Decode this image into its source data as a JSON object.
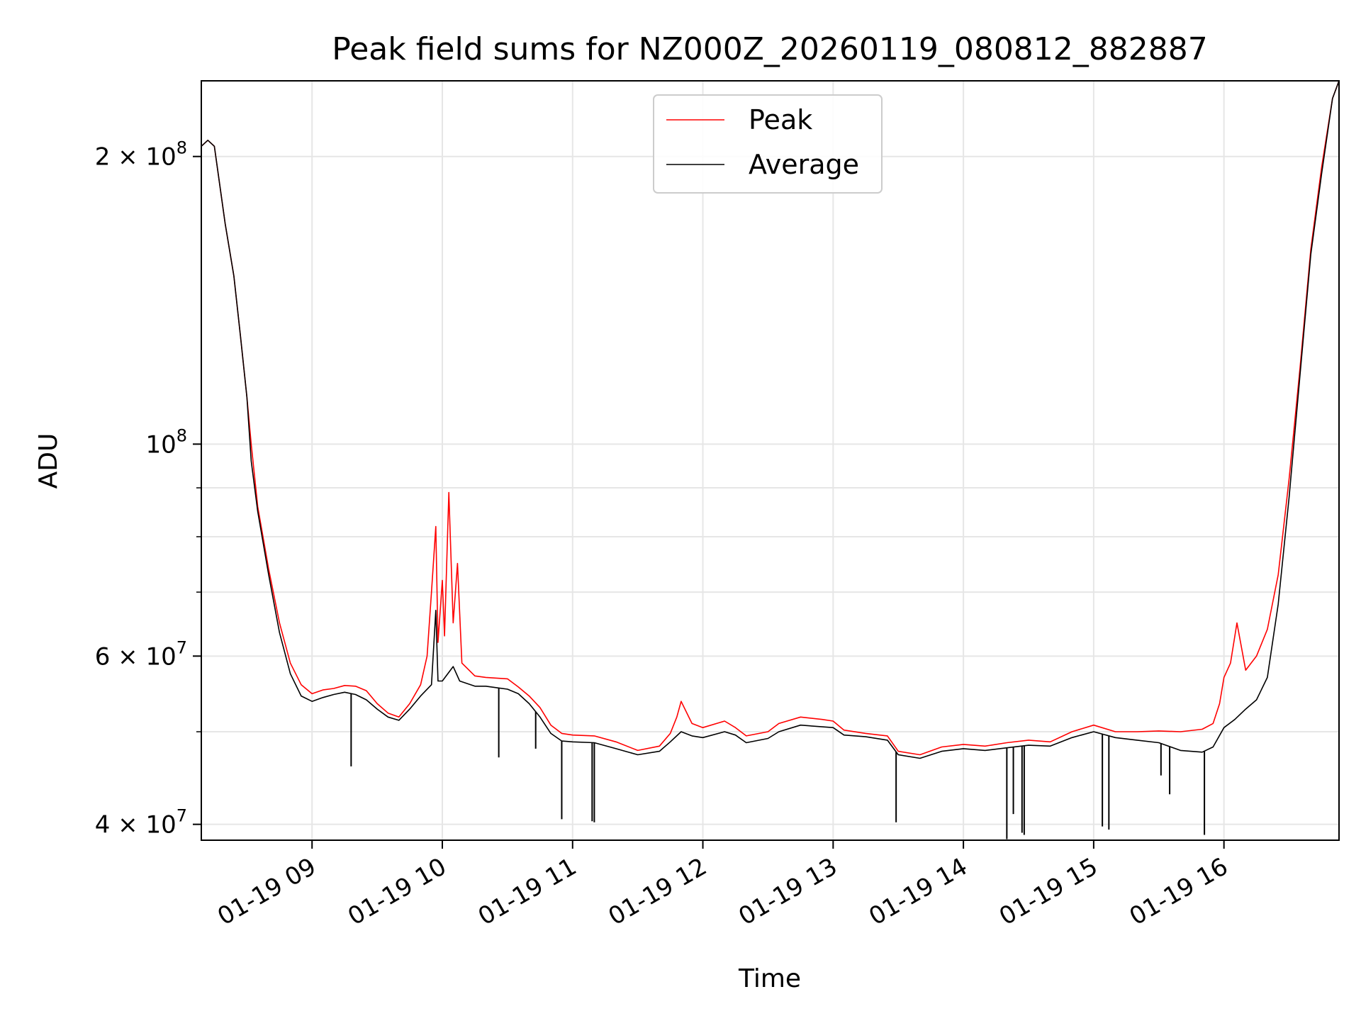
{
  "chart_data": {
    "type": "line",
    "title": "Peak field sums for NZ000Z_20260119_080812_882887",
    "xlabel": "Time",
    "ylabel": "ADU",
    "yscale": "log",
    "xlim": [
      "2026-01-19 08:09",
      "2026-01-19 16:53"
    ],
    "ylim": [
      38500000,
      240000000
    ],
    "grid": true,
    "legend_position": "top-center",
    "x_ticks": [
      {
        "t": "2026-01-19 09:00",
        "label": "01-19 09"
      },
      {
        "t": "2026-01-19 10:00",
        "label": "01-19 10"
      },
      {
        "t": "2026-01-19 11:00",
        "label": "01-19 11"
      },
      {
        "t": "2026-01-19 12:00",
        "label": "01-19 12"
      },
      {
        "t": "2026-01-19 13:00",
        "label": "01-19 13"
      },
      {
        "t": "2026-01-19 14:00",
        "label": "01-19 14"
      },
      {
        "t": "2026-01-19 15:00",
        "label": "01-19 15"
      },
      {
        "t": "2026-01-19 16:00",
        "label": "01-19 16"
      }
    ],
    "y_ticks": [
      {
        "v": 40000000,
        "base": "4 × 10",
        "exp": "7"
      },
      {
        "v": 60000000,
        "base": "6 × 10",
        "exp": "7"
      },
      {
        "v": 100000000,
        "base": "10",
        "exp": "8"
      },
      {
        "v": 200000000,
        "base": "2 × 10",
        "exp": "8"
      }
    ],
    "y_minor_ticks": [
      50000000,
      70000000,
      80000000,
      90000000
    ],
    "series": [
      {
        "name": "Peak",
        "color": "#ff0000",
        "points": [
          [
            "2026-01-19 08:09",
            205000000
          ],
          [
            "2026-01-19 08:12",
            208000000
          ],
          [
            "2026-01-19 08:15",
            205000000
          ],
          [
            "2026-01-19 08:20",
            170000000
          ],
          [
            "2026-01-19 08:24",
            150000000
          ],
          [
            "2026-01-19 08:27",
            130000000
          ],
          [
            "2026-01-19 08:30",
            112000000
          ],
          [
            "2026-01-19 08:32",
            100000000
          ],
          [
            "2026-01-19 08:35",
            86000000
          ],
          [
            "2026-01-19 08:40",
            74000000
          ],
          [
            "2026-01-19 08:45",
            65000000
          ],
          [
            "2026-01-19 08:50",
            59000000
          ],
          [
            "2026-01-19 08:55",
            56000000
          ],
          [
            "2026-01-19 09:00",
            54800000
          ],
          [
            "2026-01-19 09:05",
            55300000
          ],
          [
            "2026-01-19 09:10",
            55500000
          ],
          [
            "2026-01-19 09:15",
            55900000
          ],
          [
            "2026-01-19 09:20",
            55800000
          ],
          [
            "2026-01-19 09:25",
            55200000
          ],
          [
            "2026-01-19 09:30",
            53500000
          ],
          [
            "2026-01-19 09:35",
            52300000
          ],
          [
            "2026-01-19 09:40",
            51800000
          ],
          [
            "2026-01-19 09:45",
            53500000
          ],
          [
            "2026-01-19 09:50",
            56000000
          ],
          [
            "2026-01-19 09:53",
            60000000
          ],
          [
            "2026-01-19 09:55",
            70000000
          ],
          [
            "2026-01-19 09:57",
            82000000
          ],
          [
            "2026-01-19 09:58",
            62000000
          ],
          [
            "2026-01-19 10:00",
            72000000
          ],
          [
            "2026-01-19 10:01",
            63000000
          ],
          [
            "2026-01-19 10:03",
            89000000
          ],
          [
            "2026-01-19 10:05",
            65000000
          ],
          [
            "2026-01-19 10:07",
            75000000
          ],
          [
            "2026-01-19 10:09",
            59000000
          ],
          [
            "2026-01-19 10:15",
            57200000
          ],
          [
            "2026-01-19 10:20",
            57000000
          ],
          [
            "2026-01-19 10:25",
            56900000
          ],
          [
            "2026-01-19 10:30",
            56800000
          ],
          [
            "2026-01-19 10:35",
            55700000
          ],
          [
            "2026-01-19 10:40",
            54500000
          ],
          [
            "2026-01-19 10:45",
            53000000
          ],
          [
            "2026-01-19 10:50",
            50800000
          ],
          [
            "2026-01-19 10:55",
            49800000
          ],
          [
            "2026-01-19 11:00",
            49600000
          ],
          [
            "2026-01-19 11:10",
            49500000
          ],
          [
            "2026-01-19 11:20",
            48800000
          ],
          [
            "2026-01-19 11:30",
            47800000
          ],
          [
            "2026-01-19 11:40",
            48300000
          ],
          [
            "2026-01-19 11:45",
            49800000
          ],
          [
            "2026-01-19 11:48",
            51800000
          ],
          [
            "2026-01-19 11:50",
            53800000
          ],
          [
            "2026-01-19 11:55",
            51000000
          ],
          [
            "2026-01-19 12:00",
            50500000
          ],
          [
            "2026-01-19 12:10",
            51300000
          ],
          [
            "2026-01-19 12:15",
            50500000
          ],
          [
            "2026-01-19 12:20",
            49500000
          ],
          [
            "2026-01-19 12:30",
            50000000
          ],
          [
            "2026-01-19 12:35",
            51000000
          ],
          [
            "2026-01-19 12:45",
            51800000
          ],
          [
            "2026-01-19 12:55",
            51500000
          ],
          [
            "2026-01-19 13:00",
            51300000
          ],
          [
            "2026-01-19 13:05",
            50200000
          ],
          [
            "2026-01-19 13:15",
            49800000
          ],
          [
            "2026-01-19 13:25",
            49500000
          ],
          [
            "2026-01-19 13:30",
            47700000
          ],
          [
            "2026-01-19 13:40",
            47300000
          ],
          [
            "2026-01-19 13:50",
            48200000
          ],
          [
            "2026-01-19 14:00",
            48500000
          ],
          [
            "2026-01-19 14:10",
            48300000
          ],
          [
            "2026-01-19 14:20",
            48700000
          ],
          [
            "2026-01-19 14:30",
            49000000
          ],
          [
            "2026-01-19 14:40",
            48800000
          ],
          [
            "2026-01-19 14:50",
            50000000
          ],
          [
            "2026-01-19 15:00",
            50800000
          ],
          [
            "2026-01-19 15:10",
            50000000
          ],
          [
            "2026-01-19 15:20",
            50000000
          ],
          [
            "2026-01-19 15:30",
            50100000
          ],
          [
            "2026-01-19 15:40",
            50000000
          ],
          [
            "2026-01-19 15:50",
            50300000
          ],
          [
            "2026-01-19 15:55",
            51000000
          ],
          [
            "2026-01-19 15:58",
            53500000
          ],
          [
            "2026-01-19 16:00",
            57000000
          ],
          [
            "2026-01-19 16:03",
            59000000
          ],
          [
            "2026-01-19 16:06",
            65000000
          ],
          [
            "2026-01-19 16:10",
            58000000
          ],
          [
            "2026-01-19 16:15",
            60000000
          ],
          [
            "2026-01-19 16:20",
            64000000
          ],
          [
            "2026-01-19 16:25",
            73000000
          ],
          [
            "2026-01-19 16:30",
            92000000
          ],
          [
            "2026-01-19 16:35",
            120000000
          ],
          [
            "2026-01-19 16:40",
            160000000
          ],
          [
            "2026-01-19 16:45",
            195000000
          ],
          [
            "2026-01-19 16:50",
            230000000
          ],
          [
            "2026-01-19 16:53",
            240000000
          ]
        ]
      },
      {
        "name": "Average",
        "color": "#000000",
        "points": [
          [
            "2026-01-19 08:09",
            205000000
          ],
          [
            "2026-01-19 08:12",
            208000000
          ],
          [
            "2026-01-19 08:15",
            205000000
          ],
          [
            "2026-01-19 08:20",
            170000000
          ],
          [
            "2026-01-19 08:24",
            150000000
          ],
          [
            "2026-01-19 08:27",
            130000000
          ],
          [
            "2026-01-19 08:30",
            112000000
          ],
          [
            "2026-01-19 08:32",
            96000000
          ],
          [
            "2026-01-19 08:35",
            85000000
          ],
          [
            "2026-01-19 08:40",
            73000000
          ],
          [
            "2026-01-19 08:45",
            63500000
          ],
          [
            "2026-01-19 08:50",
            57500000
          ],
          [
            "2026-01-19 08:55",
            54500000
          ],
          [
            "2026-01-19 09:00",
            53800000
          ],
          [
            "2026-01-19 09:05",
            54300000
          ],
          [
            "2026-01-19 09:10",
            54700000
          ],
          [
            "2026-01-19 09:15",
            55000000
          ],
          [
            "2026-01-19 09:20",
            54700000
          ],
          [
            "2026-01-19 09:25",
            54000000
          ],
          [
            "2026-01-19 09:30",
            52800000
          ],
          [
            "2026-01-19 09:35",
            51800000
          ],
          [
            "2026-01-19 09:40",
            51400000
          ],
          [
            "2026-01-19 09:45",
            52800000
          ],
          [
            "2026-01-19 09:50",
            54500000
          ],
          [
            "2026-01-19 09:55",
            56000000
          ],
          [
            "2026-01-19 09:57",
            67000000
          ],
          [
            "2026-01-19 09:58",
            56500000
          ],
          [
            "2026-01-19 10:00",
            56500000
          ],
          [
            "2026-01-19 10:05",
            58500000
          ],
          [
            "2026-01-19 10:08",
            56500000
          ],
          [
            "2026-01-19 10:15",
            55800000
          ],
          [
            "2026-01-19 10:20",
            55800000
          ],
          [
            "2026-01-19 10:25",
            55600000
          ],
          [
            "2026-01-19 10:30",
            55400000
          ],
          [
            "2026-01-19 10:35",
            54800000
          ],
          [
            "2026-01-19 10:40",
            53500000
          ],
          [
            "2026-01-19 10:45",
            51800000
          ],
          [
            "2026-01-19 10:50",
            49800000
          ],
          [
            "2026-01-19 10:55",
            48900000
          ],
          [
            "2026-01-19 11:00",
            48800000
          ],
          [
            "2026-01-19 11:10",
            48700000
          ],
          [
            "2026-01-19 11:20",
            48000000
          ],
          [
            "2026-01-19 11:30",
            47300000
          ],
          [
            "2026-01-19 11:40",
            47700000
          ],
          [
            "2026-01-19 11:45",
            48800000
          ],
          [
            "2026-01-19 11:50",
            50000000
          ],
          [
            "2026-01-19 11:55",
            49500000
          ],
          [
            "2026-01-19 12:00",
            49300000
          ],
          [
            "2026-01-19 12:10",
            50000000
          ],
          [
            "2026-01-19 12:15",
            49600000
          ],
          [
            "2026-01-19 12:20",
            48700000
          ],
          [
            "2026-01-19 12:30",
            49200000
          ],
          [
            "2026-01-19 12:35",
            50000000
          ],
          [
            "2026-01-19 12:45",
            50800000
          ],
          [
            "2026-01-19 12:55",
            50600000
          ],
          [
            "2026-01-19 13:00",
            50500000
          ],
          [
            "2026-01-19 13:05",
            49600000
          ],
          [
            "2026-01-19 13:15",
            49400000
          ],
          [
            "2026-01-19 13:25",
            49000000
          ],
          [
            "2026-01-19 13:30",
            47300000
          ],
          [
            "2026-01-19 13:40",
            46900000
          ],
          [
            "2026-01-19 13:50",
            47700000
          ],
          [
            "2026-01-19 14:00",
            48000000
          ],
          [
            "2026-01-19 14:10",
            47800000
          ],
          [
            "2026-01-19 14:20",
            48100000
          ],
          [
            "2026-01-19 14:30",
            48400000
          ],
          [
            "2026-01-19 14:40",
            48300000
          ],
          [
            "2026-01-19 14:50",
            49300000
          ],
          [
            "2026-01-19 15:00",
            50000000
          ],
          [
            "2026-01-19 15:10",
            49300000
          ],
          [
            "2026-01-19 15:20",
            49000000
          ],
          [
            "2026-01-19 15:30",
            48700000
          ],
          [
            "2026-01-19 15:40",
            47800000
          ],
          [
            "2026-01-19 15:50",
            47600000
          ],
          [
            "2026-01-19 15:55",
            48200000
          ],
          [
            "2026-01-19 16:00",
            50500000
          ],
          [
            "2026-01-19 16:05",
            51500000
          ],
          [
            "2026-01-19 16:10",
            52800000
          ],
          [
            "2026-01-19 16:15",
            54000000
          ],
          [
            "2026-01-19 16:20",
            57000000
          ],
          [
            "2026-01-19 16:25",
            68000000
          ],
          [
            "2026-01-19 16:30",
            88000000
          ],
          [
            "2026-01-19 16:35",
            118000000
          ],
          [
            "2026-01-19 16:40",
            158000000
          ],
          [
            "2026-01-19 16:45",
            192000000
          ],
          [
            "2026-01-19 16:50",
            230000000
          ],
          [
            "2026-01-19 16:53",
            240000000
          ]
        ]
      }
    ],
    "dropouts": [
      {
        "t": "2026-01-19 09:18",
        "v": 46000000
      },
      {
        "t": "2026-01-19 10:26",
        "v": 47000000
      },
      {
        "t": "2026-01-19 10:43",
        "v": 48000000
      },
      {
        "t": "2026-01-19 10:55",
        "v": 40500000
      },
      {
        "t": "2026-01-19 11:09",
        "v": 40300000
      },
      {
        "t": "2026-01-19 11:10",
        "v": 40200000
      },
      {
        "t": "2026-01-19 13:29",
        "v": 40200000
      },
      {
        "t": "2026-01-19 14:20",
        "v": 38600000
      },
      {
        "t": "2026-01-19 14:23",
        "v": 41000000
      },
      {
        "t": "2026-01-19 14:27",
        "v": 39200000
      },
      {
        "t": "2026-01-19 14:28",
        "v": 39000000
      },
      {
        "t": "2026-01-19 15:04",
        "v": 39800000
      },
      {
        "t": "2026-01-19 15:07",
        "v": 39500000
      },
      {
        "t": "2026-01-19 15:31",
        "v": 45000000
      },
      {
        "t": "2026-01-19 15:35",
        "v": 43000000
      },
      {
        "t": "2026-01-19 15:51",
        "v": 39000000
      }
    ]
  }
}
